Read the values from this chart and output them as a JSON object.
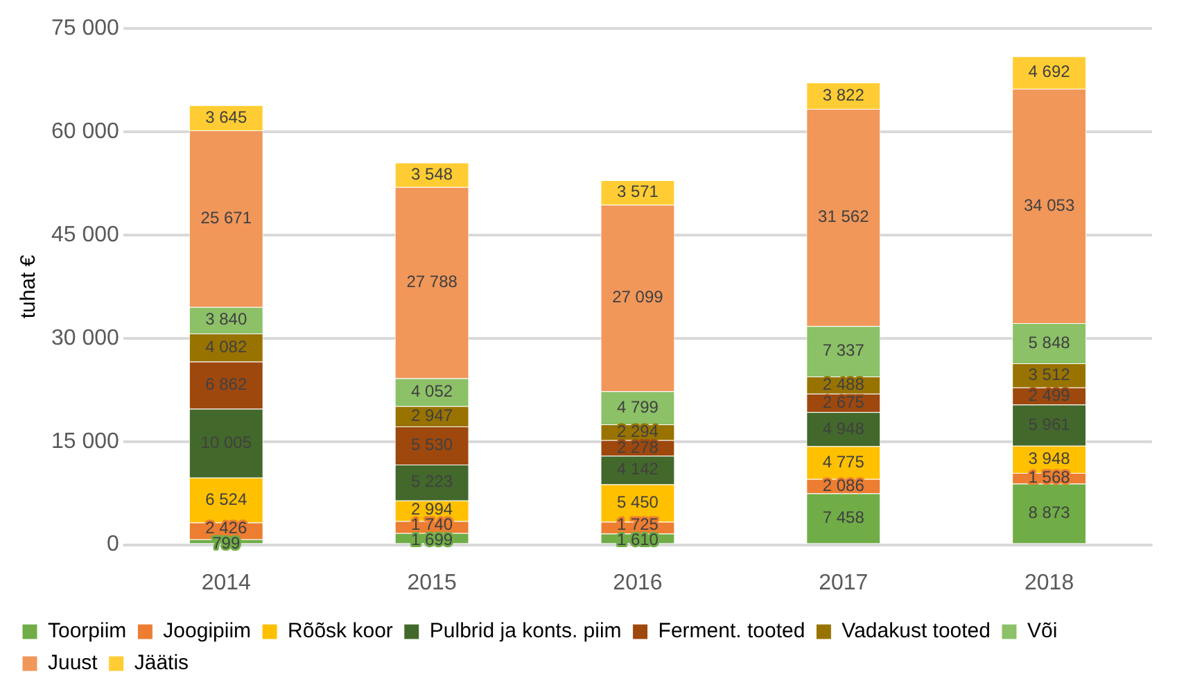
{
  "chart_data": {
    "type": "bar",
    "stacked": true,
    "ylabel": "tuhat €",
    "categories": [
      "2014",
      "2015",
      "2016",
      "2017",
      "2018"
    ],
    "series": [
      {
        "name": "Toorpiim",
        "color": "#70ad47",
        "values": [
          799,
          1699,
          1610,
          7458,
          8873
        ]
      },
      {
        "name": "Joogipiim",
        "color": "#ed7d31",
        "values": [
          2426,
          1740,
          1725,
          2086,
          1568
        ]
      },
      {
        "name": "Rõõsk koor",
        "color": "#ffc000",
        "values": [
          6524,
          2994,
          5450,
          4775,
          3948
        ]
      },
      {
        "name": "Pulbrid ja konts. piim",
        "color": "#43682b",
        "values": [
          10005,
          5223,
          4142,
          4948,
          5961
        ]
      },
      {
        "name": "Ferment. tooted",
        "color": "#9e480e",
        "values": [
          6862,
          5530,
          2278,
          2675,
          2499
        ]
      },
      {
        "name": "Vadakust tooted",
        "color": "#997300",
        "values": [
          4082,
          2947,
          2294,
          2488,
          3512
        ]
      },
      {
        "name": "Või",
        "color": "#8cc168",
        "values": [
          3840,
          4052,
          4799,
          7337,
          5848
        ]
      },
      {
        "name": "Juust",
        "color": "#f1975a",
        "values": [
          25671,
          27788,
          27099,
          31562,
          34053
        ]
      },
      {
        "name": "Jäätis",
        "color": "#ffcd33",
        "values": [
          3645,
          3548,
          3571,
          3822,
          4692
        ]
      }
    ],
    "ylim": [
      0,
      75000
    ],
    "yticks": [
      {
        "value": 0,
        "label": "0"
      },
      {
        "value": 15000,
        "label": "15 000"
      },
      {
        "value": 30000,
        "label": "30 000"
      },
      {
        "value": 45000,
        "label": "45 000"
      },
      {
        "value": 60000,
        "label": "60 000"
      },
      {
        "value": 75000,
        "label": "75 000"
      }
    ],
    "grid": "y",
    "legend": "bottom",
    "data_labels": true
  }
}
